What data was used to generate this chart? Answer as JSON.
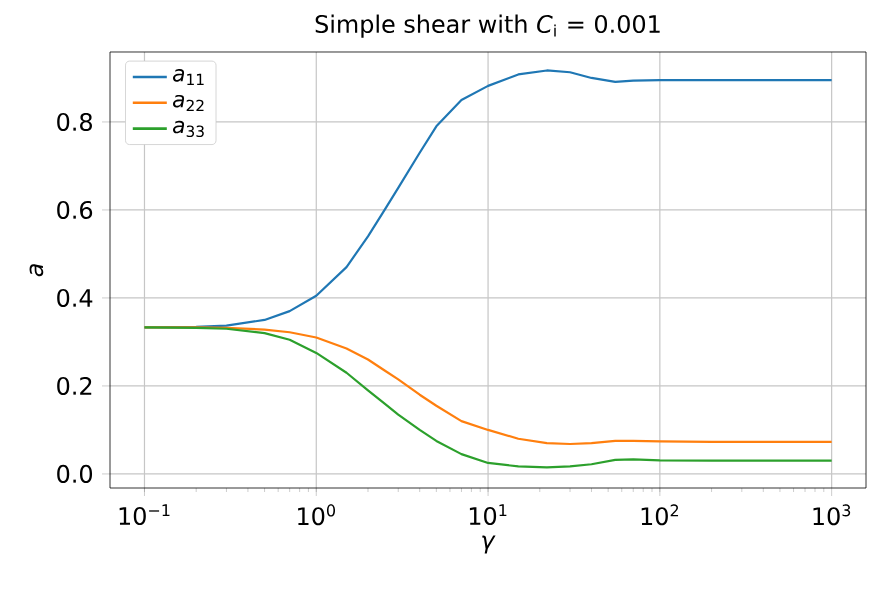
{
  "chart_data": {
    "type": "line",
    "title": "Simple shear with *C*$_{i}$ = 0.001",
    "xlabel": "*γ*",
    "ylabel": "*a*",
    "x": [
      0.1,
      0.2,
      0.3,
      0.5,
      0.7,
      1,
      1.5,
      2,
      2.5,
      3,
      4,
      5,
      7,
      10,
      15,
      22,
      30,
      40,
      55,
      70,
      100,
      200,
      500,
      1000
    ],
    "series": [
      {
        "name": "*a*$_{11}$",
        "color": "#1f77b4",
        "values": [
          0.333,
          0.334,
          0.337,
          0.35,
          0.37,
          0.405,
          0.47,
          0.54,
          0.6,
          0.65,
          0.73,
          0.79,
          0.85,
          0.882,
          0.908,
          0.917,
          0.913,
          0.9,
          0.891,
          0.894,
          0.895,
          0.895,
          0.895,
          0.895
        ]
      },
      {
        "name": "*a*$_{22}$",
        "color": "#ff7f0e",
        "values": [
          0.333,
          0.333,
          0.332,
          0.328,
          0.322,
          0.31,
          0.285,
          0.26,
          0.235,
          0.215,
          0.18,
          0.155,
          0.12,
          0.1,
          0.08,
          0.07,
          0.068,
          0.07,
          0.075,
          0.075,
          0.074,
          0.073,
          0.073,
          0.073
        ]
      },
      {
        "name": "*a*$_{33}$",
        "color": "#2ca02c",
        "values": [
          0.333,
          0.332,
          0.33,
          0.32,
          0.305,
          0.275,
          0.23,
          0.19,
          0.16,
          0.135,
          0.1,
          0.075,
          0.045,
          0.025,
          0.017,
          0.015,
          0.017,
          0.022,
          0.032,
          0.033,
          0.031,
          0.03,
          0.03,
          0.03
        ]
      }
    ],
    "log": "x",
    "xlim": [
      0.063,
      1585
    ],
    "ylim": [
      -0.032,
      0.959
    ],
    "xticks": [
      {
        "value": 0.1,
        "label": "10$^{−1}$"
      },
      {
        "value": 1,
        "label": "10$^{0}$"
      },
      {
        "value": 10,
        "label": "10$^{1}$"
      },
      {
        "value": 100,
        "label": "10$^{2}$"
      },
      {
        "value": 1000,
        "label": "10$^{3}$"
      }
    ],
    "yticks": [
      {
        "value": 0,
        "label": "0.0"
      },
      0.2,
      0.4,
      0.6,
      0.8
    ],
    "grid": true,
    "legend": "top left",
    "line_style": "solid",
    "marker": "none"
  }
}
